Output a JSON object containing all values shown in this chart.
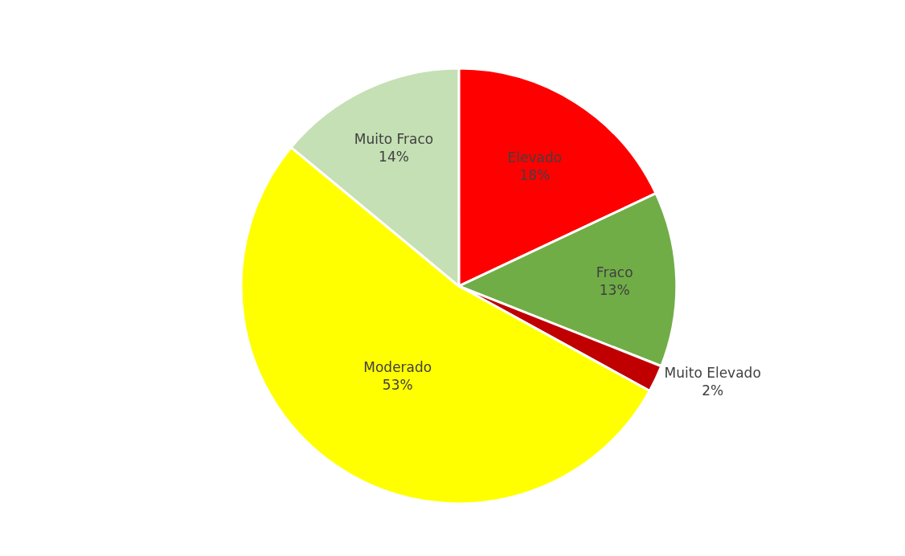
{
  "chart_data": {
    "type": "pie",
    "categories": [
      "Elevado",
      "Fraco",
      "Muito Elevado",
      "Moderado",
      "Muito Fraco"
    ],
    "values": [
      18,
      13,
      2,
      53,
      14
    ],
    "colors": [
      "#ff0000",
      "#70ad47",
      "#c00000",
      "#ffff00",
      "#c5e0b4"
    ],
    "value_labels": [
      "18%",
      "13%",
      "2%",
      "53%",
      "14%"
    ],
    "legend": false
  }
}
